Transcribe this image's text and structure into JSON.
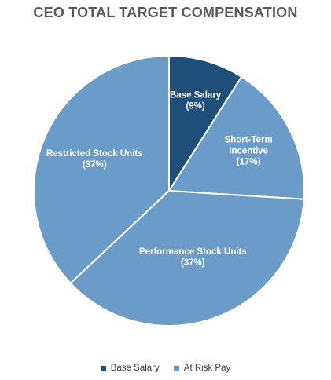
{
  "chart_data": {
    "type": "pie",
    "title": "CEO TOTAL TARGET COMPENSATION",
    "slices": [
      {
        "label": "Base Salary",
        "label_lines": [
          "Base Salary"
        ],
        "pct_label": "(9%)",
        "value": 9,
        "color": "#1f4e79"
      },
      {
        "label": "Short-Term Incentive",
        "label_lines": [
          "Short-Term",
          "Incentive"
        ],
        "pct_label": "(17%)",
        "value": 17,
        "color": "#6b9bc8"
      },
      {
        "label": "Performance Stock Units",
        "label_lines": [
          "Performance Stock Units"
        ],
        "pct_label": "(37%)",
        "value": 37,
        "color": "#6b9bc8"
      },
      {
        "label": "Restricted Stock Units",
        "label_lines": [
          "Restricted Stock Units"
        ],
        "pct_label": "(37%)",
        "value": 37,
        "color": "#6b9bc8"
      }
    ],
    "legend": [
      {
        "label": "Base Salary",
        "color": "#1f4e79"
      },
      {
        "label": "At Risk Pay",
        "color": "#6b9bc8"
      }
    ],
    "legend_position": "bottom",
    "slice_border_color": "#ffffff"
  }
}
